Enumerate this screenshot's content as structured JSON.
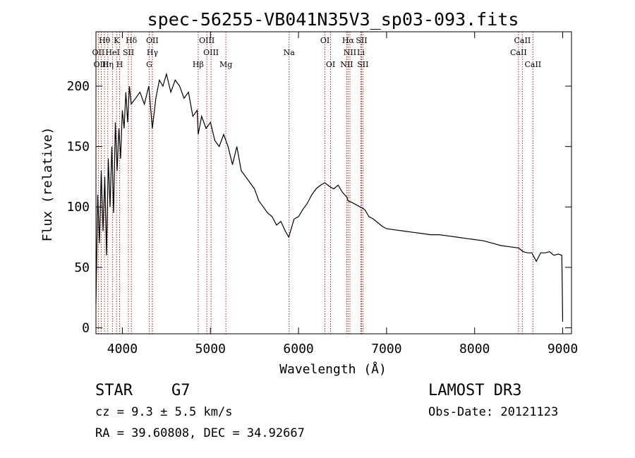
{
  "chart_data": {
    "type": "line",
    "title": "spec-56255-VB041N35V3_sp03-093.fits",
    "xlabel": "Wavelength (Å)",
    "ylabel": "Flux (relative)",
    "xlim": [
      3700,
      9100
    ],
    "ylim": [
      -5,
      245
    ],
    "x_ticks": [
      4000,
      5000,
      6000,
      7000,
      8000,
      9000
    ],
    "y_ticks": [
      0,
      50,
      100,
      150,
      200
    ],
    "x_tick_labels": [
      "4000",
      "5000",
      "6000",
      "7000",
      "8000",
      "9000"
    ],
    "y_tick_labels": [
      "0",
      "50",
      "100",
      "150",
      "200"
    ],
    "line_color": "#000000",
    "marker_color": "#b22222",
    "series": [
      {
        "name": "flux",
        "x": [
          3700,
          3720,
          3740,
          3760,
          3780,
          3800,
          3820,
          3840,
          3860,
          3880,
          3900,
          3920,
          3940,
          3960,
          3980,
          4000,
          4020,
          4040,
          4060,
          4080,
          4100,
          4150,
          4200,
          4250,
          4300,
          4340,
          4380,
          4420,
          4460,
          4500,
          4550,
          4600,
          4650,
          4700,
          4750,
          4800,
          4850,
          4861,
          4900,
          4950,
          5000,
          5050,
          5100,
          5150,
          5200,
          5250,
          5300,
          5350,
          5400,
          5450,
          5500,
          5550,
          5600,
          5650,
          5700,
          5750,
          5800,
          5850,
          5890,
          5950,
          6000,
          6050,
          6100,
          6150,
          6200,
          6250,
          6300,
          6350,
          6400,
          6450,
          6500,
          6550,
          6563,
          6600,
          6650,
          6700,
          6750,
          6800,
          6850,
          6900,
          6950,
          7000,
          7100,
          7200,
          7300,
          7400,
          7500,
          7600,
          7700,
          7800,
          7900,
          8000,
          8100,
          8200,
          8300,
          8400,
          8500,
          8550,
          8600,
          8650,
          8700,
          8750,
          8800,
          8850,
          8900,
          8950,
          8990,
          9000
        ],
        "values": [
          20,
          110,
          70,
          130,
          80,
          125,
          60,
          140,
          100,
          150,
          95,
          170,
          130,
          165,
          140,
          180,
          165,
          195,
          170,
          200,
          185,
          190,
          195,
          185,
          200,
          165,
          190,
          205,
          200,
          210,
          195,
          205,
          200,
          190,
          195,
          175,
          180,
          160,
          175,
          165,
          170,
          155,
          150,
          160,
          150,
          135,
          150,
          130,
          125,
          120,
          115,
          105,
          100,
          95,
          92,
          85,
          88,
          80,
          75,
          90,
          92,
          98,
          103,
          110,
          115,
          118,
          120,
          117,
          115,
          118,
          112,
          108,
          105,
          104,
          102,
          100,
          98,
          92,
          90,
          87,
          84,
          82,
          81,
          80,
          79,
          78,
          77,
          77,
          76,
          75,
          74,
          73,
          72,
          70,
          68,
          67,
          66,
          63,
          62,
          62,
          55,
          62,
          62,
          63,
          60,
          61,
          60,
          5
        ]
      }
    ],
    "spectral_lines": [
      {
        "name": "Hθ",
        "wavelength": 3797,
        "row": 0
      },
      {
        "name": "K",
        "wavelength": 3934,
        "row": 0
      },
      {
        "name": "Hδ",
        "wavelength": 4102,
        "row": 0
      },
      {
        "name": "OII",
        "wavelength": 4340,
        "row": 0
      },
      {
        "name": "OIII",
        "wavelength": 4959,
        "row": 0
      },
      {
        "name": "OI",
        "wavelength": 6300,
        "row": 0
      },
      {
        "name": "Hα",
        "wavelength": 6563,
        "row": 0
      },
      {
        "name": "SII",
        "wavelength": 6716,
        "row": 0
      },
      {
        "name": "CaII",
        "wavelength": 8542,
        "row": 0
      },
      {
        "name": "OII",
        "wavelength": 3727,
        "row": 1
      },
      {
        "name": "HeI",
        "wavelength": 3889,
        "row": 1
      },
      {
        "name": "SII",
        "wavelength": 4069,
        "row": 1
      },
      {
        "name": "Hγ",
        "wavelength": 4341,
        "row": 1
      },
      {
        "name": "OIII",
        "wavelength": 5007,
        "row": 1
      },
      {
        "name": "Na",
        "wavelength": 5893,
        "row": 1
      },
      {
        "name": "NII",
        "wavelength": 6584,
        "row": 1
      },
      {
        "name": "Li",
        "wavelength": 6708,
        "row": 1
      },
      {
        "name": "CaII",
        "wavelength": 8498,
        "row": 1
      },
      {
        "name": "OIII",
        "wavelength": 3760,
        "row": 2
      },
      {
        "name": "Hη",
        "wavelength": 3835,
        "row": 2
      },
      {
        "name": "H",
        "wavelength": 3969,
        "row": 2
      },
      {
        "name": "G",
        "wavelength": 4305,
        "row": 2
      },
      {
        "name": "Hβ",
        "wavelength": 4861,
        "row": 2
      },
      {
        "name": "Mg",
        "wavelength": 5175,
        "row": 2
      },
      {
        "name": "OI",
        "wavelength": 6364,
        "row": 2
      },
      {
        "name": "NII",
        "wavelength": 6548,
        "row": 2
      },
      {
        "name": "SII",
        "wavelength": 6731,
        "row": 2
      },
      {
        "name": "CaII",
        "wavelength": 8662,
        "row": 2
      }
    ]
  },
  "info": {
    "object_class": "STAR",
    "subclass": "G7",
    "release": "LAMOST DR3",
    "redshift": "cz = 9.3 ± 5.5 km/s",
    "obs_date": "Obs-Date: 20121123",
    "coords": "RA =  39.60808, DEC =  34.92667"
  }
}
